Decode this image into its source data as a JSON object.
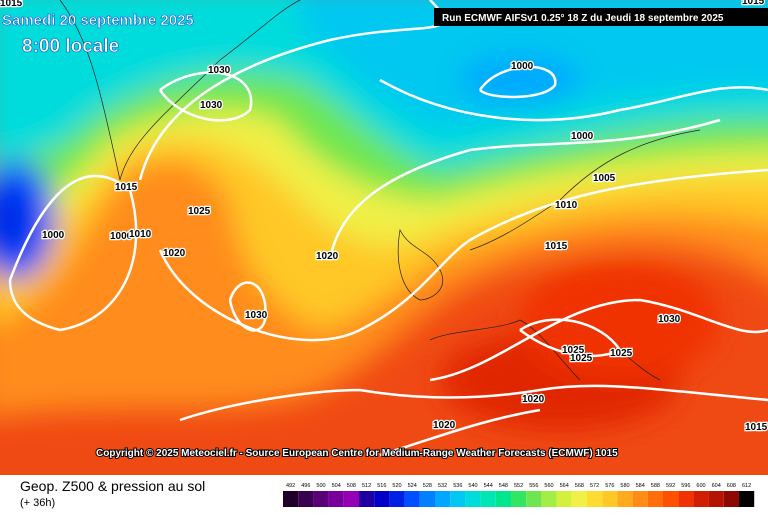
{
  "header": {
    "title": "Samedi 20 septembre 2025",
    "subtitle": "8:00 locale",
    "run": "Run ECMWF AIFSv1 0.25° 18 Z du Jeudi 18 septembre 2025"
  },
  "isobar_labels": [
    "1015",
    "1030",
    "1030",
    "1015",
    "1025",
    "1000",
    "1010",
    "1000",
    "1020",
    "1030",
    "1020",
    "1000",
    "1000",
    "1005",
    "1010",
    "1015",
    "1030",
    "1025",
    "1025",
    "1025",
    "1020",
    "1020",
    "1015",
    "1015"
  ],
  "copyright": "Copyright © 2025 Meteociel.fr - Source European Centre for Medium-Range Weather Forecasts (ECMWF) 1015",
  "footer": {
    "title": "Geop. Z500 & pression au sol",
    "lead": "(+ 36h)"
  },
  "scale": {
    "labels": [
      492,
      496,
      500,
      504,
      508,
      512,
      516,
      520,
      524,
      528,
      532,
      536,
      540,
      544,
      548,
      552,
      556,
      560,
      564,
      568,
      572,
      576,
      580,
      584,
      588,
      592,
      596,
      600,
      604,
      608,
      612
    ],
    "colors": [
      "#1e0028",
      "#3c0050",
      "#5a0078",
      "#78009a",
      "#9600b4",
      "#1e00a0",
      "#0000c8",
      "#0020e6",
      "#0050ff",
      "#0080ff",
      "#00a8ff",
      "#00c8f0",
      "#00dcdc",
      "#00e6b4",
      "#00e68c",
      "#32e664",
      "#6ee650",
      "#a0ee46",
      "#d2f03c",
      "#f0f046",
      "#ffdc32",
      "#ffc828",
      "#ffaa1e",
      "#ff8c14",
      "#ff6e0a",
      "#ff5000",
      "#f03200",
      "#d21e00",
      "#b41400",
      "#8c0a00",
      "#000000"
    ]
  }
}
